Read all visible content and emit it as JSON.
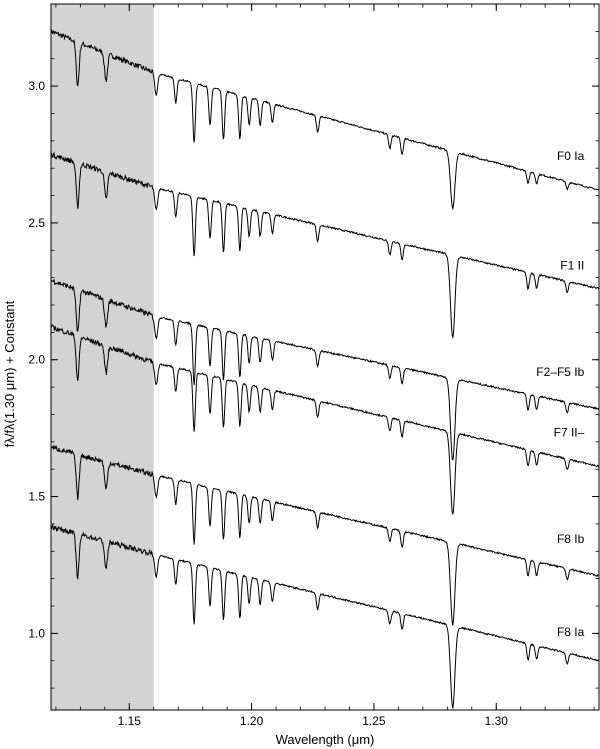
{
  "chart_data": {
    "type": "line",
    "xlabel": "Wavelength (μm)",
    "ylabel": "fλ/fλ(1.30 μm) + Constant",
    "xlim": [
      1.118,
      1.342
    ],
    "ylim": [
      0.72,
      3.3
    ],
    "xticks": [
      1.15,
      1.2,
      1.25,
      1.3
    ],
    "xtick_labels": [
      "1.15",
      "1.20",
      "1.25",
      "1.30"
    ],
    "yticks": [
      1.0,
      1.5,
      2.0,
      2.5,
      3.0
    ],
    "ytick_labels": [
      "1.0",
      "1.5",
      "2.0",
      "2.5",
      "3.0"
    ],
    "shaded_region": {
      "x": [
        1.118,
        1.16
      ],
      "color": "#d3d3d3"
    },
    "grid": false,
    "legend": "none",
    "line_color": "#000000",
    "absorption_lines": [
      {
        "x": 1.1289,
        "depth": 0.16,
        "width": 0.0006
      },
      {
        "x": 1.1405,
        "depth": 0.1,
        "width": 0.0006
      },
      {
        "x": 1.161,
        "depth": 0.08,
        "width": 0.0006
      },
      {
        "x": 1.169,
        "depth": 0.09,
        "width": 0.0005
      },
      {
        "x": 1.1765,
        "depth": 0.22,
        "width": 0.0005
      },
      {
        "x": 1.183,
        "depth": 0.14,
        "width": 0.0005
      },
      {
        "x": 1.1885,
        "depth": 0.18,
        "width": 0.0005
      },
      {
        "x": 1.1952,
        "depth": 0.16,
        "width": 0.0005
      },
      {
        "x": 1.199,
        "depth": 0.1,
        "width": 0.0005
      },
      {
        "x": 1.2035,
        "depth": 0.09,
        "width": 0.0005
      },
      {
        "x": 1.2085,
        "depth": 0.07,
        "width": 0.0005
      },
      {
        "x": 1.227,
        "depth": 0.06,
        "width": 0.0005
      },
      {
        "x": 1.2565,
        "depth": 0.05,
        "width": 0.0005
      },
      {
        "x": 1.2615,
        "depth": 0.06,
        "width": 0.0005
      },
      {
        "x": 1.2822,
        "depth": 0.3,
        "width": 0.0009
      },
      {
        "x": 1.313,
        "depth": 0.06,
        "width": 0.0005
      },
      {
        "x": 1.3165,
        "depth": 0.05,
        "width": 0.0005
      },
      {
        "x": 1.329,
        "depth": 0.04,
        "width": 0.0005
      }
    ],
    "series": [
      {
        "name": "F0 Ia",
        "x": [
          1.118,
          1.16,
          1.342
        ],
        "y": [
          3.2,
          3.05,
          2.62
        ]
      },
      {
        "name": "F1 II",
        "x": [
          1.118,
          1.16,
          1.342
        ],
        "y": [
          2.75,
          2.63,
          2.26
        ]
      },
      {
        "name": "F2–F5 Ib",
        "x": [
          1.118,
          1.16,
          1.342
        ],
        "y": [
          2.29,
          2.16,
          1.82
        ]
      },
      {
        "name": "F7 II–",
        "x": [
          1.118,
          1.16,
          1.342
        ],
        "y": [
          2.12,
          1.99,
          1.61
        ]
      },
      {
        "name": "F8 Ib",
        "x": [
          1.118,
          1.16,
          1.342
        ],
        "y": [
          1.68,
          1.58,
          1.21
        ]
      },
      {
        "name": "F8 Ia",
        "x": [
          1.118,
          1.16,
          1.342
        ],
        "y": [
          1.39,
          1.29,
          0.9
        ]
      }
    ],
    "series_labels": [
      {
        "text": "F0 Ia",
        "x": 1.336,
        "y": 2.73
      },
      {
        "text": "F1 II",
        "x": 1.336,
        "y": 2.33
      },
      {
        "text": "F2–F5 Ib",
        "x": 1.336,
        "y": 1.94
      },
      {
        "text": "F7 II–",
        "x": 1.336,
        "y": 1.72
      },
      {
        "text": "F8 Ib",
        "x": 1.336,
        "y": 1.33
      },
      {
        "text": "F8 Ia",
        "x": 1.336,
        "y": 0.99
      }
    ]
  }
}
